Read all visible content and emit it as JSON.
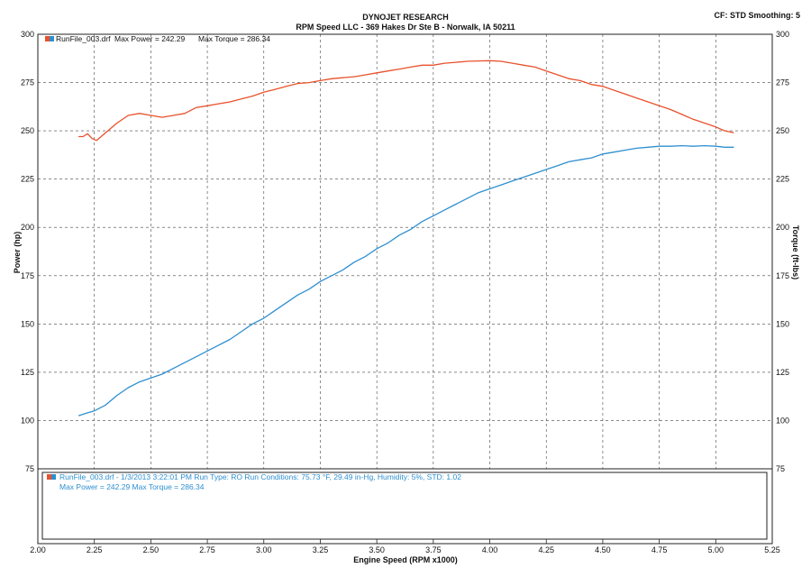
{
  "header": {
    "title": "DYNOJET RESEARCH",
    "subtitle": "RPM Speed LLC - 369 Hakes Dr Ste B - Norwalk, IA 50211",
    "settings": "CF: STD  Smoothing: 5"
  },
  "legend": {
    "line1_file": "RunFile_003.drf",
    "line1_power": "Max Power = 242.29",
    "line1_torque": "Max Torque = 286.34"
  },
  "run_info": {
    "line1": "RunFile_003.drf - 1/3/2013 3:22:01 PM  Run Type: RO  Run Conditions: 75.73 °F, 29.49 in-Hg,  Humidity: 5%, STD: 1.02",
    "line2": "Max Power = 242.29  Max Torque = 286.34"
  },
  "colors": {
    "power": "#2e8fd0",
    "torque": "#e8522c",
    "grid": "#444444"
  },
  "chart_data": {
    "type": "line",
    "title": "DYNOJET RESEARCH",
    "xlabel": "Engine Speed (RPM x1000)",
    "ylabel": "Power (hp)",
    "y2label": "Torque (ft-lbs)",
    "xlim": [
      2.0,
      5.25
    ],
    "ylim": [
      75,
      300
    ],
    "x_ticks": [
      "2.00",
      "2.25",
      "2.50",
      "2.75",
      "3.00",
      "3.25",
      "3.50",
      "3.75",
      "4.00",
      "4.25",
      "4.50",
      "4.75",
      "5.00",
      "5.25"
    ],
    "y_ticks": [
      "75",
      "100",
      "125",
      "150",
      "175",
      "200",
      "225",
      "250",
      "275",
      "300"
    ],
    "y2_ticks": [
      "75",
      "100",
      "125",
      "150",
      "175",
      "200",
      "225",
      "250",
      "275",
      "300"
    ],
    "grid": true,
    "series": [
      {
        "name": "Power",
        "axis": "left",
        "x": [
          2.18,
          2.22,
          2.25,
          2.3,
          2.35,
          2.4,
          2.45,
          2.5,
          2.55,
          2.6,
          2.65,
          2.7,
          2.75,
          2.8,
          2.85,
          2.9,
          2.95,
          3.0,
          3.05,
          3.1,
          3.15,
          3.2,
          3.25,
          3.3,
          3.35,
          3.4,
          3.45,
          3.5,
          3.55,
          3.6,
          3.65,
          3.7,
          3.75,
          3.8,
          3.85,
          3.9,
          3.95,
          4.0,
          4.05,
          4.1,
          4.15,
          4.2,
          4.25,
          4.3,
          4.35,
          4.4,
          4.45,
          4.5,
          4.55,
          4.6,
          4.65,
          4.7,
          4.75,
          4.8,
          4.85,
          4.9,
          4.95,
          5.0,
          5.04,
          5.08
        ],
        "values": [
          102.5,
          104,
          105,
          108,
          113,
          117,
          120,
          122,
          124,
          127,
          130,
          133,
          136,
          139,
          142,
          146,
          150,
          153,
          157,
          161,
          165,
          168,
          172,
          175,
          178,
          182,
          185,
          189,
          192,
          196,
          199,
          203,
          206,
          209,
          212,
          215,
          218,
          220,
          222,
          224,
          226,
          228,
          230,
          232,
          234,
          235,
          236,
          238,
          239,
          240,
          241,
          241.5,
          242,
          242,
          242.3,
          242,
          242.29,
          242,
          241.5,
          241.5
        ]
      },
      {
        "name": "Torque",
        "axis": "right",
        "x": [
          2.18,
          2.2,
          2.22,
          2.24,
          2.26,
          2.3,
          2.35,
          2.4,
          2.45,
          2.5,
          2.55,
          2.6,
          2.65,
          2.7,
          2.75,
          2.8,
          2.85,
          2.9,
          2.95,
          3.0,
          3.05,
          3.1,
          3.15,
          3.2,
          3.25,
          3.3,
          3.35,
          3.4,
          3.45,
          3.5,
          3.55,
          3.6,
          3.65,
          3.7,
          3.75,
          3.8,
          3.85,
          3.9,
          3.95,
          4.0,
          4.05,
          4.1,
          4.15,
          4.2,
          4.25,
          4.3,
          4.35,
          4.4,
          4.45,
          4.5,
          4.55,
          4.6,
          4.65,
          4.7,
          4.75,
          4.8,
          4.85,
          4.9,
          4.95,
          5.0,
          5.04,
          5.08
        ],
        "values": [
          247,
          247,
          248.5,
          246,
          245,
          249,
          254,
          258,
          259,
          258,
          257,
          258,
          259,
          262,
          263,
          264,
          265,
          266.5,
          268,
          270,
          271.5,
          273,
          274.5,
          275,
          276,
          277,
          277.5,
          278,
          279,
          280,
          281,
          282,
          283,
          284,
          284,
          285,
          285.5,
          286,
          286.2,
          286.34,
          286,
          285,
          284,
          283,
          281,
          279,
          277,
          276,
          274,
          273,
          271,
          269,
          267,
          265,
          263,
          261,
          258.5,
          256,
          254,
          252,
          250,
          249
        ]
      }
    ]
  }
}
